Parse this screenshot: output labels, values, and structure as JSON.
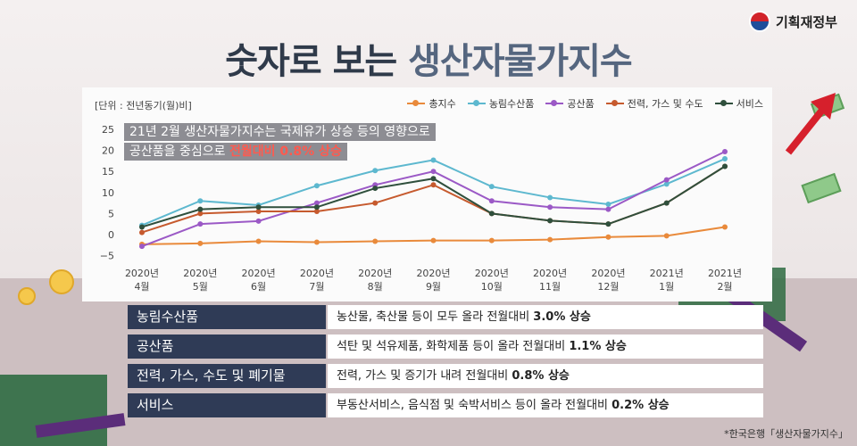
{
  "header": {
    "ministry": "기획재정부",
    "title_part1": "숫자로 보는",
    "title_part2": "생산자물가지수"
  },
  "colors": {
    "total": "#e98a3b",
    "agri": "#5db8cf",
    "industrial": "#9b59c6",
    "power": "#c65a2e",
    "services": "#2f4f3c"
  },
  "chart_data": {
    "type": "line",
    "unit_label": "[단위 : 전년동기(월)비]",
    "categories": [
      [
        "2020년",
        "4월"
      ],
      [
        "2020년",
        "5월"
      ],
      [
        "2020년",
        "6월"
      ],
      [
        "2020년",
        "7월"
      ],
      [
        "2020년",
        "8월"
      ],
      [
        "2020년",
        "9월"
      ],
      [
        "2020년",
        "10월"
      ],
      [
        "2020년",
        "11월"
      ],
      [
        "2020년",
        "12월"
      ],
      [
        "2021년",
        "1월"
      ],
      [
        "2021년",
        "2월"
      ]
    ],
    "ylim": [
      -7,
      25
    ],
    "yticks": [
      25,
      20,
      15,
      10,
      5,
      0,
      -5
    ],
    "ytick_labels": [
      "25",
      "20",
      "15",
      "10",
      "5",
      "0",
      "−5"
    ],
    "legend_position": "top-right",
    "series": [
      {
        "name": "총지수",
        "key": "total",
        "values": [
          -2.3,
          -2.1,
          -1.6,
          -1.8,
          -1.6,
          -1.4,
          -1.4,
          -1.2,
          -0.6,
          -0.3,
          1.8
        ]
      },
      {
        "name": "농림수산품",
        "key": "agri",
        "values": [
          2.2,
          8.0,
          7.0,
          11.6,
          15.2,
          17.7,
          11.4,
          8.8,
          7.2,
          12.0,
          18.0
        ]
      },
      {
        "name": "공산품",
        "key": "industrial",
        "values": [
          -2.8,
          2.5,
          3.2,
          7.5,
          11.8,
          15.0,
          8.0,
          6.5,
          6.0,
          13.0,
          19.7
        ]
      },
      {
        "name": "전력, 가스 및 수도",
        "key": "power",
        "values": [
          0.5,
          5.0,
          5.5,
          5.5,
          7.5,
          11.8,
          5.0,
          3.3,
          2.5,
          7.5,
          16.2
        ]
      },
      {
        "name": "서비스",
        "key": "services",
        "values": [
          1.8,
          6.0,
          6.5,
          6.5,
          11.0,
          13.3,
          5.0,
          3.3,
          2.5,
          7.5,
          16.2
        ]
      }
    ]
  },
  "annotation": {
    "line1": "21년 2월 생산자물가지수는 국제유가 상승 등의 영향으로",
    "line2_prefix": "공산품을 중심으로 ",
    "line2_highlight": "전월대비 0.8% 상승"
  },
  "table": [
    {
      "category": "농림수산품",
      "desc": "농산물, 축산물 등이 모두 올라 전월대비 ",
      "value": "3.0% 상승"
    },
    {
      "category": "공산품",
      "desc": "석탄 및 석유제품, 화학제품 등이 올라 전월대비 ",
      "value": "1.1% 상승"
    },
    {
      "category": "전력, 가스, 수도 및 폐기물",
      "desc": "전력, 가스 및 증기가 내려 전월대비 ",
      "value": "0.8% 상승"
    },
    {
      "category": "서비스",
      "desc": "부동산서비스, 음식점 및 숙박서비스 등이 올라 전월대비 ",
      "value": "0.2% 상승"
    }
  ],
  "source": "*한국은행「생산자물가지수」"
}
